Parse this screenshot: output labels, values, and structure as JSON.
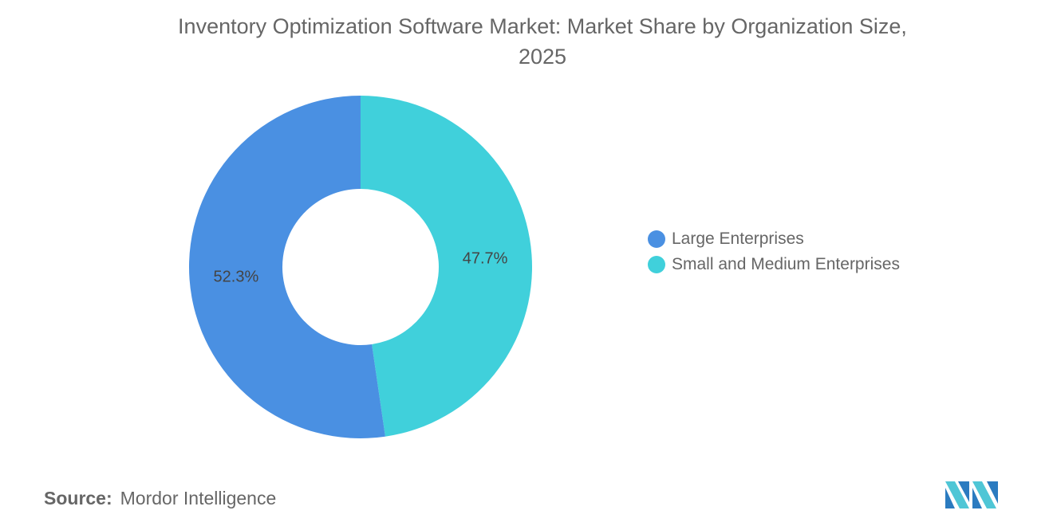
{
  "chart_data": {
    "type": "pie",
    "variant": "donut",
    "title": "Inventory Optimization Software Market: Market Share by Organization Size, 2025",
    "title_lines": [
      "Inventory Optimization Software Market: Market Share by Organization Size,",
      "2025"
    ],
    "categories": [
      "Large Enterprises",
      "Small and Medium Enterprises"
    ],
    "values": [
      52.3,
      47.7
    ],
    "labels": [
      "52.3%",
      "47.7%"
    ],
    "colors": [
      "#4A90E2",
      "#40D0DB"
    ],
    "legend_position": "right"
  },
  "source": {
    "label": "Source:",
    "value": "Mordor Intelligence"
  },
  "logo": {
    "name": "mordor-intelligence-logo",
    "colors": [
      "#2B7BC0",
      "#4FC6D6"
    ]
  }
}
